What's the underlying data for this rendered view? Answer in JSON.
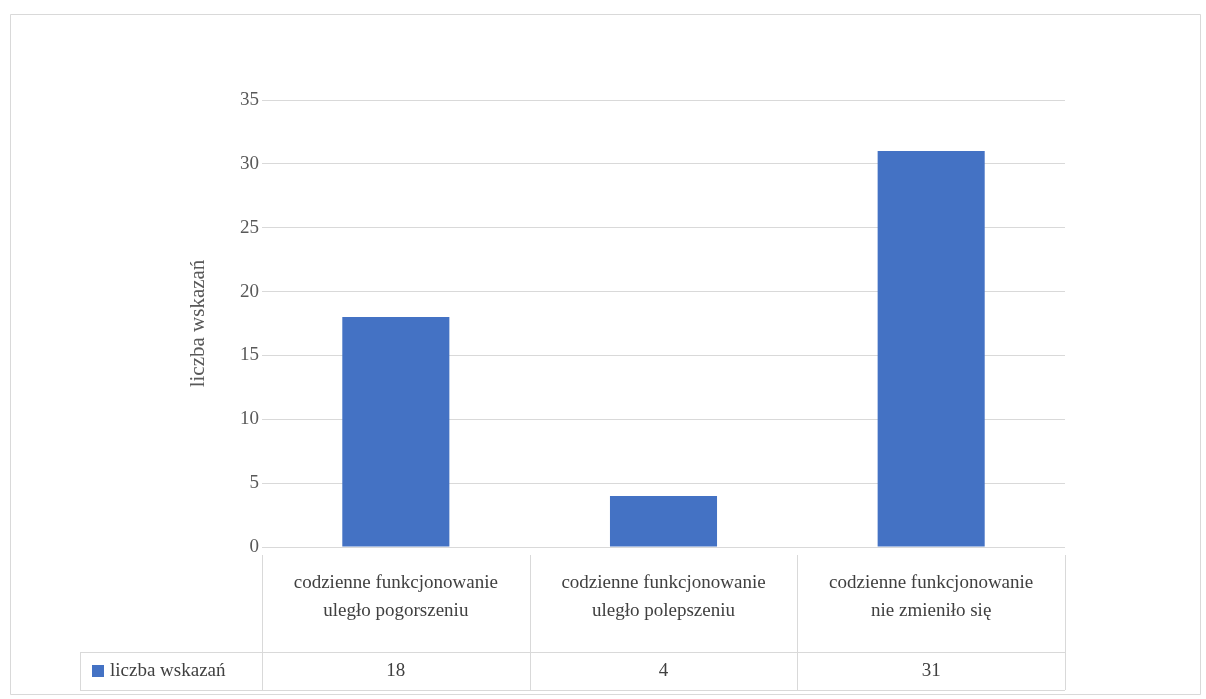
{
  "chart_data": {
    "type": "bar",
    "ylabel": "liczba wskazań",
    "categories": [
      "codzienne funkcjonowanie uległo pogorszeniu",
      "codzienne funkcjonowanie uległo polepszeniu",
      "codzienne funkcjonowanie nie zmieniło się"
    ],
    "series": [
      {
        "name": "liczba wskazań",
        "color": "#4472c4",
        "values": [
          18,
          4,
          31
        ]
      }
    ],
    "ylim": [
      0,
      35
    ],
    "yticks": [
      0,
      5,
      10,
      15,
      20,
      25,
      30,
      35
    ],
    "grid": "y",
    "legend": "bottom",
    "data_labels": true
  }
}
